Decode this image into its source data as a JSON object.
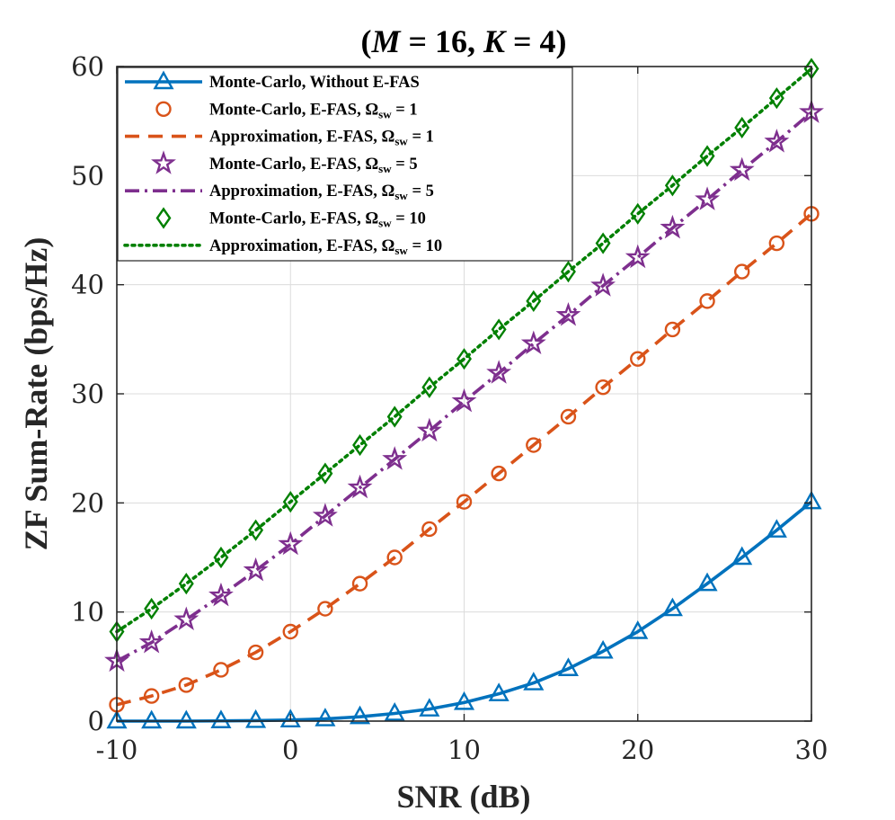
{
  "chart_data": {
    "type": "line",
    "title": "(M = 16, K = 4)",
    "title_parts": {
      "open": "(",
      "m": "M",
      "eq1": " = 16, ",
      "k": "K",
      "eq2": " = 4)"
    },
    "xlabel": "SNR (dB)",
    "ylabel": "ZF Sum-Rate (bps/Hz)",
    "xlim": [
      -10,
      30
    ],
    "ylim": [
      0,
      60
    ],
    "xticks": [
      -10,
      0,
      10,
      20,
      30
    ],
    "yticks": [
      0,
      10,
      20,
      30,
      40,
      50,
      60
    ],
    "xtick_labels": [
      "-10",
      "0",
      "10",
      "20",
      "30"
    ],
    "ytick_labels": [
      "0",
      "10",
      "20",
      "30",
      "40",
      "50",
      "60"
    ],
    "grid": true,
    "legend_position": "top-left",
    "x": [
      -10,
      -8,
      -6,
      -4,
      -2,
      0,
      2,
      4,
      6,
      8,
      10,
      12,
      14,
      16,
      18,
      20,
      22,
      24,
      26,
      28,
      30
    ],
    "series": [
      {
        "name": "Monte-Carlo, Without E-FAS",
        "legend_main": "Monte-Carlo, Without E-FAS",
        "legend_sub": "",
        "legend_tail": "",
        "color": "#0072BD",
        "line": "solid",
        "marker": "triangle",
        "values": [
          0.0,
          0.0,
          0.0,
          0.02,
          0.05,
          0.1,
          0.2,
          0.4,
          0.7,
          1.1,
          1.7,
          2.5,
          3.5,
          4.8,
          6.4,
          8.2,
          10.3,
          12.6,
          15.0,
          17.5,
          20.1
        ]
      },
      {
        "name": "Monte-Carlo, E-FAS, Ωsw = 1",
        "legend_main": "Monte-Carlo, E-FAS, Ω",
        "legend_sub": "sw",
        "legend_tail": " = 1",
        "color": "#D95319",
        "line": "none",
        "marker": "circle",
        "values": [
          1.5,
          2.3,
          3.3,
          4.7,
          6.3,
          8.2,
          10.3,
          12.6,
          15.0,
          17.6,
          20.1,
          22.7,
          25.3,
          27.9,
          30.6,
          33.2,
          35.9,
          38.5,
          41.2,
          43.8,
          46.5
        ]
      },
      {
        "name": "Approximation, E-FAS, Ωsw = 1",
        "legend_main": "Approximation, E-FAS, Ω",
        "legend_sub": "sw",
        "legend_tail": " = 1",
        "color": "#D95319",
        "line": "dashed",
        "marker": "none",
        "values": [
          1.5,
          2.3,
          3.3,
          4.7,
          6.3,
          8.2,
          10.3,
          12.6,
          15.0,
          17.6,
          20.1,
          22.7,
          25.3,
          27.9,
          30.6,
          33.2,
          35.9,
          38.5,
          41.2,
          43.8,
          46.5
        ]
      },
      {
        "name": "Monte-Carlo, E-FAS, Ωsw = 5",
        "legend_main": "Monte-Carlo, E-FAS, Ω",
        "legend_sub": "sw",
        "legend_tail": " = 5",
        "color": "#7E2F8E",
        "line": "none",
        "marker": "star",
        "values": [
          5.5,
          7.2,
          9.3,
          11.5,
          13.8,
          16.2,
          18.8,
          21.4,
          24.0,
          26.6,
          29.3,
          31.9,
          34.6,
          37.2,
          39.9,
          42.5,
          45.2,
          47.8,
          50.5,
          53.1,
          55.8
        ]
      },
      {
        "name": "Approximation, E-FAS, Ωsw = 5",
        "legend_main": "Approximation, E-FAS, Ω",
        "legend_sub": "sw",
        "legend_tail": " = 5",
        "color": "#7E2F8E",
        "line": "dashdot",
        "marker": "none",
        "values": [
          5.5,
          7.2,
          9.3,
          11.5,
          13.8,
          16.2,
          18.8,
          21.4,
          24.0,
          26.6,
          29.3,
          31.9,
          34.6,
          37.2,
          39.9,
          42.5,
          45.2,
          47.8,
          50.5,
          53.1,
          55.8
        ]
      },
      {
        "name": "Monte-Carlo, E-FAS, Ωsw = 10",
        "legend_main": "Monte-Carlo, E-FAS, Ω",
        "legend_sub": "sw",
        "legend_tail": " = 10",
        "color": "#008000",
        "line": "none",
        "marker": "diamond",
        "values": [
          8.2,
          10.3,
          12.6,
          15.0,
          17.5,
          20.1,
          22.7,
          25.3,
          27.9,
          30.6,
          33.2,
          35.9,
          38.5,
          41.2,
          43.8,
          46.5,
          49.1,
          51.8,
          54.4,
          57.1,
          59.8
        ]
      },
      {
        "name": "Approximation, E-FAS, Ωsw = 10",
        "legend_main": "Approximation, E-FAS, Ω",
        "legend_sub": "sw",
        "legend_tail": " = 10",
        "color": "#008000",
        "line": "dotted",
        "marker": "none",
        "values": [
          8.2,
          10.3,
          12.6,
          15.0,
          17.5,
          20.1,
          22.7,
          25.3,
          27.9,
          30.6,
          33.2,
          35.9,
          38.5,
          41.2,
          43.8,
          46.5,
          49.1,
          51.8,
          54.4,
          57.1,
          59.8
        ]
      }
    ]
  }
}
